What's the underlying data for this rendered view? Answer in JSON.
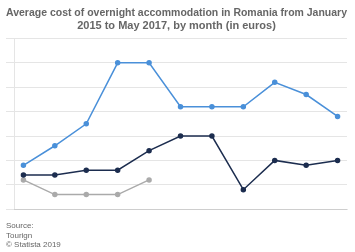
{
  "chart_data": {
    "type": "line",
    "title": "Average cost of overnight accommodation in Romania from January\n2015 to May 2017, by month (in euros)",
    "annotation": "Source:\nTourign\n© Statista 2019",
    "x": [
      0,
      1,
      2,
      3,
      4,
      5,
      6,
      7,
      8,
      9,
      10
    ],
    "series": [
      {
        "color": "#4a90d9",
        "marker": "circle",
        "values": [
          38,
          46,
          55,
          80,
          80,
          62,
          62,
          62,
          72,
          67,
          58
        ]
      },
      {
        "color": "#1c2d4f",
        "marker": "circle",
        "values": [
          34,
          34,
          36,
          36,
          44,
          50,
          50,
          28,
          40,
          38,
          40
        ]
      },
      {
        "color": "#aaaaaa",
        "marker": "circle",
        "values": [
          32,
          26,
          26,
          26,
          32,
          null,
          null,
          null,
          null,
          null,
          null
        ]
      }
    ],
    "xlim": [
      -0.3,
      10.3
    ],
    "xticks": [],
    "ylim": [
      20,
      90
    ],
    "yticks": [
      20,
      30,
      40,
      50,
      60,
      70,
      80,
      90
    ],
    "grid": true,
    "tick_labels": false
  }
}
